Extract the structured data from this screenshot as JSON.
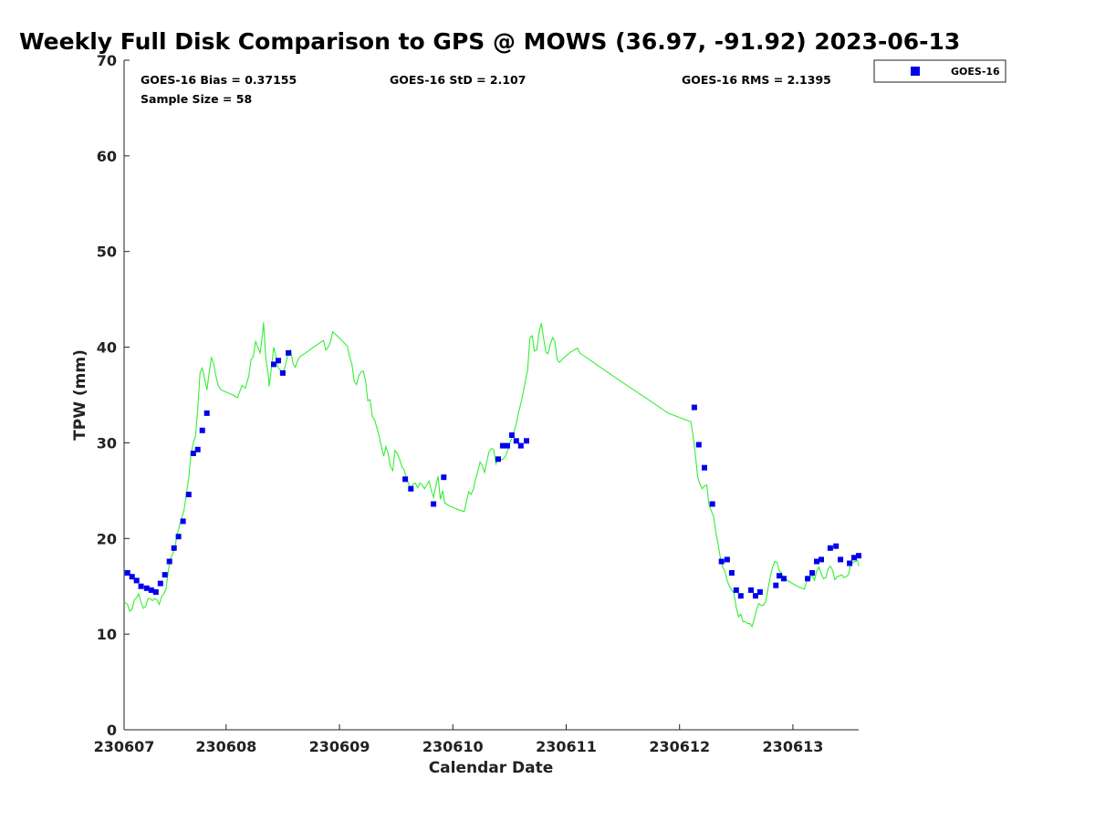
{
  "chart_data": {
    "type": "scatter",
    "title": "Weekly Full Disk Comparison to GPS @ MOWS (36.97, -91.92) 2023-06-13",
    "xlabel": "Calendar Date",
    "ylabel": "TPW (mm)",
    "xlim": [
      0.1,
      6.58
    ],
    "ylim": [
      0,
      70
    ],
    "x_ticks": [
      0,
      1,
      2,
      3,
      4,
      5,
      6
    ],
    "x_tick_labels": [
      "230607",
      "230608",
      "230609",
      "230610",
      "230611",
      "230612",
      "230613"
    ],
    "y_ticks": [
      0,
      10,
      20,
      30,
      40,
      50,
      60,
      70
    ],
    "legend": {
      "position": "top-right-outside",
      "entries": [
        "GOES-16"
      ]
    },
    "stats": {
      "bias": "GOES-16 Bias = 0.37155",
      "std": "GOES-16 StD = 2.107",
      "rms": "GOES-16 RMS = 2.1395",
      "sample": "Sample Size = 58"
    },
    "series": [
      {
        "name": "GOES-16",
        "kind": "scatter",
        "color": "#0000ee",
        "points": [
          [
            0.13,
            16.4
          ],
          [
            0.17,
            16.0
          ],
          [
            0.21,
            15.6
          ],
          [
            0.25,
            15.0
          ],
          [
            0.3,
            14.8
          ],
          [
            0.34,
            14.6
          ],
          [
            0.38,
            14.4
          ],
          [
            0.42,
            15.3
          ],
          [
            0.46,
            16.2
          ],
          [
            0.5,
            17.6
          ],
          [
            0.54,
            19.0
          ],
          [
            0.58,
            20.2
          ],
          [
            0.62,
            21.8
          ],
          [
            0.67,
            24.6
          ],
          [
            0.71,
            28.9
          ],
          [
            0.75,
            29.3
          ],
          [
            0.79,
            31.3
          ],
          [
            0.83,
            33.1
          ],
          [
            1.42,
            38.2
          ],
          [
            1.46,
            38.6
          ],
          [
            1.5,
            37.3
          ],
          [
            1.55,
            39.4
          ],
          [
            2.58,
            26.2
          ],
          [
            2.63,
            25.2
          ],
          [
            2.83,
            23.6
          ],
          [
            2.92,
            26.4
          ],
          [
            3.4,
            28.3
          ],
          [
            3.44,
            29.7
          ],
          [
            3.48,
            29.7
          ],
          [
            3.52,
            30.8
          ],
          [
            3.56,
            30.2
          ],
          [
            3.6,
            29.7
          ],
          [
            3.65,
            30.2
          ],
          [
            5.13,
            33.7
          ],
          [
            5.17,
            29.8
          ],
          [
            5.22,
            27.4
          ],
          [
            5.29,
            23.6
          ],
          [
            5.37,
            17.6
          ],
          [
            5.42,
            17.8
          ],
          [
            5.46,
            16.4
          ],
          [
            5.5,
            14.6
          ],
          [
            5.54,
            14.0
          ],
          [
            5.63,
            14.6
          ],
          [
            5.67,
            14.0
          ],
          [
            5.71,
            14.4
          ],
          [
            5.85,
            15.1
          ],
          [
            5.88,
            16.1
          ],
          [
            5.92,
            15.8
          ],
          [
            6.13,
            15.8
          ],
          [
            6.17,
            16.4
          ],
          [
            6.21,
            17.6
          ],
          [
            6.25,
            17.8
          ],
          [
            6.33,
            19.0
          ],
          [
            6.38,
            19.2
          ],
          [
            6.42,
            17.8
          ],
          [
            6.5,
            17.4
          ],
          [
            6.54,
            18.0
          ],
          [
            6.58,
            18.2
          ]
        ]
      },
      {
        "name": "GPS",
        "kind": "line",
        "color": "#33ee33",
        "points": [
          [
            0.1,
            13.4
          ],
          [
            0.13,
            13.1
          ],
          [
            0.15,
            12.4
          ],
          [
            0.17,
            12.6
          ],
          [
            0.19,
            13.6
          ],
          [
            0.21,
            13.8
          ],
          [
            0.23,
            14.2
          ],
          [
            0.25,
            13.3
          ],
          [
            0.27,
            12.7
          ],
          [
            0.29,
            12.9
          ],
          [
            0.31,
            13.7
          ],
          [
            0.33,
            13.7
          ],
          [
            0.35,
            13.5
          ],
          [
            0.37,
            13.7
          ],
          [
            0.39,
            13.6
          ],
          [
            0.41,
            13.1
          ],
          [
            0.43,
            13.9
          ],
          [
            0.45,
            14.2
          ],
          [
            0.47,
            14.7
          ],
          [
            0.49,
            16.6
          ],
          [
            0.51,
            17.9
          ],
          [
            0.53,
            18.4
          ],
          [
            0.55,
            19.2
          ],
          [
            0.57,
            20.5
          ],
          [
            0.59,
            21.4
          ],
          [
            0.61,
            22.2
          ],
          [
            0.63,
            23.0
          ],
          [
            0.65,
            24.7
          ],
          [
            0.67,
            26.3
          ],
          [
            0.69,
            28.8
          ],
          [
            0.71,
            30.0
          ],
          [
            0.73,
            30.7
          ],
          [
            0.75,
            33.5
          ],
          [
            0.77,
            37.3
          ],
          [
            0.79,
            37.8
          ],
          [
            0.81,
            36.7
          ],
          [
            0.83,
            35.5
          ],
          [
            0.85,
            37.3
          ],
          [
            0.87,
            38.9
          ],
          [
            0.89,
            38.3
          ],
          [
            0.91,
            37.0
          ],
          [
            0.93,
            36.0
          ],
          [
            0.95,
            35.6
          ],
          [
            0.98,
            35.4
          ],
          [
            1.02,
            35.2
          ],
          [
            1.06,
            35.0
          ],
          [
            1.1,
            34.7
          ],
          [
            1.14,
            36.0
          ],
          [
            1.17,
            35.7
          ],
          [
            1.2,
            37.0
          ],
          [
            1.22,
            38.7
          ],
          [
            1.24,
            39.0
          ],
          [
            1.26,
            40.6
          ],
          [
            1.28,
            40.0
          ],
          [
            1.3,
            39.4
          ],
          [
            1.32,
            41.2
          ],
          [
            1.33,
            42.6
          ],
          [
            1.35,
            38.8
          ],
          [
            1.37,
            37.3
          ],
          [
            1.38,
            35.9
          ],
          [
            1.4,
            37.9
          ],
          [
            1.42,
            40.0
          ],
          [
            1.44,
            39.0
          ],
          [
            1.46,
            37.8
          ],
          [
            1.48,
            37.6
          ],
          [
            1.5,
            37.2
          ],
          [
            1.52,
            38.0
          ],
          [
            1.55,
            39.5
          ],
          [
            1.57,
            39.7
          ],
          [
            1.59,
            38.3
          ],
          [
            1.61,
            37.9
          ],
          [
            1.63,
            38.6
          ],
          [
            1.65,
            39.0
          ],
          [
            1.7,
            39.4
          ],
          [
            1.76,
            39.9
          ],
          [
            1.82,
            40.4
          ],
          [
            1.86,
            40.7
          ],
          [
            1.88,
            39.7
          ],
          [
            1.9,
            40.0
          ],
          [
            1.92,
            40.5
          ],
          [
            1.94,
            41.6
          ],
          [
            1.97,
            41.3
          ],
          [
            2.02,
            40.7
          ],
          [
            2.07,
            40.1
          ],
          [
            2.09,
            39.0
          ],
          [
            2.11,
            38.2
          ],
          [
            2.13,
            36.4
          ],
          [
            2.15,
            36.1
          ],
          [
            2.17,
            37.0
          ],
          [
            2.19,
            37.4
          ],
          [
            2.21,
            37.5
          ],
          [
            2.23,
            36.5
          ],
          [
            2.25,
            34.4
          ],
          [
            2.27,
            34.5
          ],
          [
            2.29,
            32.7
          ],
          [
            2.31,
            32.4
          ],
          [
            2.33,
            31.6
          ],
          [
            2.35,
            30.7
          ],
          [
            2.37,
            29.6
          ],
          [
            2.39,
            28.6
          ],
          [
            2.41,
            29.6
          ],
          [
            2.43,
            28.8
          ],
          [
            2.45,
            27.5
          ],
          [
            2.47,
            27.1
          ],
          [
            2.49,
            29.2
          ],
          [
            2.51,
            28.9
          ],
          [
            2.53,
            28.3
          ],
          [
            2.55,
            27.5
          ],
          [
            2.57,
            27.2
          ],
          [
            2.59,
            26.4
          ],
          [
            2.61,
            25.7
          ],
          [
            2.63,
            25.3
          ],
          [
            2.65,
            25.7
          ],
          [
            2.67,
            25.8
          ],
          [
            2.69,
            25.3
          ],
          [
            2.71,
            25.8
          ],
          [
            2.73,
            25.6
          ],
          [
            2.75,
            25.2
          ],
          [
            2.77,
            25.6
          ],
          [
            2.79,
            26.0
          ],
          [
            2.81,
            25.0
          ],
          [
            2.83,
            24.3
          ],
          [
            2.85,
            25.5
          ],
          [
            2.87,
            26.5
          ],
          [
            2.89,
            24.1
          ],
          [
            2.91,
            25.0
          ],
          [
            2.93,
            23.7
          ],
          [
            2.97,
            23.4
          ],
          [
            3.01,
            23.2
          ],
          [
            3.05,
            23.0
          ],
          [
            3.1,
            22.8
          ],
          [
            3.14,
            24.9
          ],
          [
            3.16,
            24.6
          ],
          [
            3.18,
            25.1
          ],
          [
            3.2,
            26.2
          ],
          [
            3.22,
            27.0
          ],
          [
            3.24,
            28.0
          ],
          [
            3.26,
            27.6
          ],
          [
            3.28,
            26.9
          ],
          [
            3.3,
            28.1
          ],
          [
            3.32,
            29.1
          ],
          [
            3.34,
            29.4
          ],
          [
            3.36,
            29.3
          ],
          [
            3.38,
            27.8
          ],
          [
            3.4,
            28.4
          ],
          [
            3.42,
            28.2
          ],
          [
            3.44,
            28.3
          ],
          [
            3.46,
            28.5
          ],
          [
            3.48,
            29.1
          ],
          [
            3.5,
            29.9
          ],
          [
            3.52,
            30.5
          ],
          [
            3.54,
            31.2
          ],
          [
            3.56,
            32.0
          ],
          [
            3.58,
            33.2
          ],
          [
            3.6,
            34.1
          ],
          [
            3.62,
            35.2
          ],
          [
            3.64,
            36.5
          ],
          [
            3.66,
            37.7
          ],
          [
            3.68,
            41.0
          ],
          [
            3.7,
            41.2
          ],
          [
            3.72,
            39.6
          ],
          [
            3.74,
            39.7
          ],
          [
            3.76,
            41.5
          ],
          [
            3.78,
            42.5
          ],
          [
            3.8,
            41.0
          ],
          [
            3.82,
            39.5
          ],
          [
            3.84,
            39.3
          ],
          [
            3.86,
            40.3
          ],
          [
            3.88,
            41.0
          ],
          [
            3.9,
            40.6
          ],
          [
            3.92,
            38.7
          ],
          [
            3.94,
            38.4
          ],
          [
            3.98,
            38.9
          ],
          [
            4.04,
            39.5
          ],
          [
            4.1,
            39.9
          ],
          [
            4.12,
            39.4
          ],
          [
            4.3,
            37.9
          ],
          [
            4.5,
            36.3
          ],
          [
            4.7,
            34.7
          ],
          [
            4.9,
            33.1
          ],
          [
            5.1,
            32.2
          ],
          [
            5.12,
            30.7
          ],
          [
            5.14,
            28.7
          ],
          [
            5.16,
            26.4
          ],
          [
            5.18,
            25.7
          ],
          [
            5.2,
            25.2
          ],
          [
            5.22,
            25.5
          ],
          [
            5.24,
            25.6
          ],
          [
            5.26,
            23.5
          ],
          [
            5.28,
            22.9
          ],
          [
            5.3,
            22.3
          ],
          [
            5.32,
            20.6
          ],
          [
            5.34,
            19.4
          ],
          [
            5.36,
            18.0
          ],
          [
            5.38,
            17.0
          ],
          [
            5.4,
            16.6
          ],
          [
            5.42,
            15.6
          ],
          [
            5.44,
            15.0
          ],
          [
            5.46,
            14.6
          ],
          [
            5.48,
            14.3
          ],
          [
            5.5,
            12.8
          ],
          [
            5.52,
            11.8
          ],
          [
            5.54,
            12.1
          ],
          [
            5.56,
            11.3
          ],
          [
            5.58,
            11.3
          ],
          [
            5.6,
            11.1
          ],
          [
            5.62,
            11.1
          ],
          [
            5.64,
            10.8
          ],
          [
            5.66,
            11.6
          ],
          [
            5.68,
            12.6
          ],
          [
            5.7,
            13.2
          ],
          [
            5.72,
            13.0
          ],
          [
            5.74,
            13.0
          ],
          [
            5.76,
            13.4
          ],
          [
            5.78,
            14.7
          ],
          [
            5.8,
            16.0
          ],
          [
            5.82,
            17.0
          ],
          [
            5.84,
            17.6
          ],
          [
            5.86,
            17.5
          ],
          [
            5.88,
            16.6
          ],
          [
            5.9,
            16.4
          ],
          [
            5.92,
            15.8
          ],
          [
            5.94,
            15.7
          ],
          [
            5.98,
            15.4
          ],
          [
            6.04,
            15.0
          ],
          [
            6.1,
            14.7
          ],
          [
            6.13,
            15.8
          ],
          [
            6.15,
            15.8
          ],
          [
            6.17,
            16.2
          ],
          [
            6.19,
            15.6
          ],
          [
            6.21,
            16.6
          ],
          [
            6.23,
            17.0
          ],
          [
            6.25,
            16.3
          ],
          [
            6.27,
            15.8
          ],
          [
            6.29,
            15.9
          ],
          [
            6.31,
            16.8
          ],
          [
            6.33,
            17.1
          ],
          [
            6.35,
            16.7
          ],
          [
            6.37,
            15.7
          ],
          [
            6.39,
            16.0
          ],
          [
            6.41,
            16.1
          ],
          [
            6.43,
            16.2
          ],
          [
            6.45,
            15.9
          ],
          [
            6.47,
            16.0
          ],
          [
            6.49,
            16.2
          ],
          [
            6.51,
            17.3
          ],
          [
            6.53,
            17.5
          ],
          [
            6.55,
            17.6
          ],
          [
            6.57,
            17.7
          ],
          [
            6.58,
            17.1
          ]
        ]
      }
    ]
  }
}
